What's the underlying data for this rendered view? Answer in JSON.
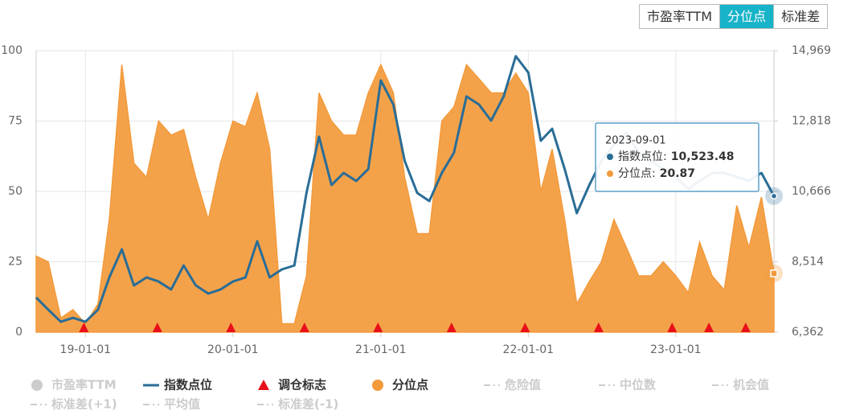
{
  "chart_data": {
    "type": "area-line",
    "buttons": [
      {
        "label": "市盈率TTM",
        "active": false
      },
      {
        "label": "分位点",
        "active": true
      },
      {
        "label": "标准差",
        "active": false
      }
    ],
    "x": [
      "2018-09-01",
      "2018-10-01",
      "2018-11-01",
      "2018-12-01",
      "2019-01-01",
      "2019-02-01",
      "2019-03-01",
      "2019-04-01",
      "2019-05-01",
      "2019-06-01",
      "2019-07-01",
      "2019-08-01",
      "2019-09-01",
      "2019-10-01",
      "2019-11-01",
      "2019-12-01",
      "2020-01-01",
      "2020-02-01",
      "2020-03-01",
      "2020-04-01",
      "2020-05-01",
      "2020-06-01",
      "2020-07-01",
      "2020-08-01",
      "2020-09-01",
      "2020-10-01",
      "2020-11-01",
      "2020-12-01",
      "2021-01-01",
      "2021-02-01",
      "2021-03-01",
      "2021-04-01",
      "2021-05-01",
      "2021-06-01",
      "2021-07-01",
      "2021-08-01",
      "2021-09-01",
      "2021-10-01",
      "2021-11-01",
      "2021-12-01",
      "2022-01-01",
      "2022-02-01",
      "2022-03-01",
      "2022-04-01",
      "2022-05-01",
      "2022-06-01",
      "2022-07-01",
      "2022-08-01",
      "2022-09-01",
      "2022-10-01",
      "2022-11-01",
      "2022-12-01",
      "2023-01-01",
      "2023-02-01",
      "2023-03-01",
      "2023-04-01",
      "2023-05-01",
      "2023-06-01",
      "2023-07-01",
      "2023-08-01",
      "2023-09-01"
    ],
    "xlim": [
      "2018-09-01",
      "2023-09-01"
    ],
    "xticks": [
      {
        "value": "2019-01-01",
        "label": "19-01-01"
      },
      {
        "value": "2020-01-01",
        "label": "20-01-01"
      },
      {
        "value": "2021-01-01",
        "label": "21-01-01"
      },
      {
        "value": "2022-01-01",
        "label": "22-01-01"
      },
      {
        "value": "2023-01-01",
        "label": "23-01-01"
      }
    ],
    "ylim": [
      0,
      100
    ],
    "yticks": [
      0,
      25,
      50,
      75,
      100
    ],
    "y2lim": [
      6362,
      14969
    ],
    "y2ticks": [
      {
        "value": 6362,
        "label": "6,362"
      },
      {
        "value": 8514,
        "label": "8,514"
      },
      {
        "value": 10666,
        "label": "10,666"
      },
      {
        "value": 12818,
        "label": "12,818"
      },
      {
        "value": 14969,
        "label": "14,969"
      }
    ],
    "grid": true,
    "series": [
      {
        "name": "市盈率TTM",
        "symbol": "circle",
        "visible": false
      },
      {
        "name": "指数点位",
        "symbol": "line",
        "visible": true,
        "axis": "y2",
        "color": "#2a6d96",
        "values": [
          7420,
          7050,
          6680,
          6800,
          6680,
          7050,
          8035,
          8895,
          7790,
          8035,
          7910,
          7665,
          8400,
          7790,
          7540,
          7665,
          7910,
          8035,
          9140,
          8035,
          8280,
          8400,
          10620,
          12340,
          10860,
          11230,
          10985,
          11350,
          14060,
          13320,
          11600,
          10620,
          10370,
          11230,
          11850,
          13570,
          13320,
          12830,
          13570,
          14800,
          14300,
          12215,
          12580,
          11350,
          10000,
          10860,
          11600,
          12090,
          12460,
          11850,
          11600,
          11350,
          11105,
          10740,
          10985,
          11230,
          11230,
          11105,
          10985,
          11230,
          10523.48
        ]
      },
      {
        "name": "调仓标志",
        "symbol": "triangle",
        "visible": true,
        "color": "#e8101a",
        "x": [
          "2018-12-28",
          "2019-06-28",
          "2019-12-27",
          "2020-06-26",
          "2020-12-25",
          "2021-06-25",
          "2021-12-24",
          "2022-06-24",
          "2022-12-23",
          "2023-03-24",
          "2023-06-23"
        ],
        "values": [
          0,
          0,
          0,
          0,
          0,
          0,
          0,
          0,
          0,
          0,
          0
        ]
      },
      {
        "name": "分位点",
        "symbol": "circle",
        "visible": true,
        "color": "#f39a3b",
        "values": [
          27,
          25,
          5,
          8,
          3,
          10,
          40,
          95,
          60,
          55,
          75,
          70,
          72,
          55,
          40,
          60,
          75,
          73,
          85,
          65,
          3,
          3,
          20,
          85,
          75,
          70,
          70,
          85,
          95,
          85,
          55,
          35,
          35,
          75,
          80,
          95,
          90,
          85,
          85,
          92,
          85,
          50,
          65,
          40,
          10,
          18,
          25,
          40,
          30,
          20,
          20,
          25,
          20,
          14,
          32,
          20,
          15,
          45,
          30,
          48,
          20.87
        ]
      },
      {
        "name": "危险值",
        "symbol": "dash",
        "visible": false
      },
      {
        "name": "中位数",
        "symbol": "dash",
        "visible": false
      },
      {
        "name": "机会值",
        "symbol": "dash",
        "visible": false
      },
      {
        "name": "标准差(+1)",
        "symbol": "dash",
        "visible": false
      },
      {
        "name": "平均值",
        "symbol": "dash",
        "visible": false
      },
      {
        "name": "标准差(-1)",
        "symbol": "dash",
        "visible": false
      }
    ],
    "tooltip": {
      "rows": [
        {
          "label": "指数点位:",
          "value": "10,523.48"
        },
        {
          "label": "分位点:",
          "value": "20.87"
        }
      ]
    }
  }
}
